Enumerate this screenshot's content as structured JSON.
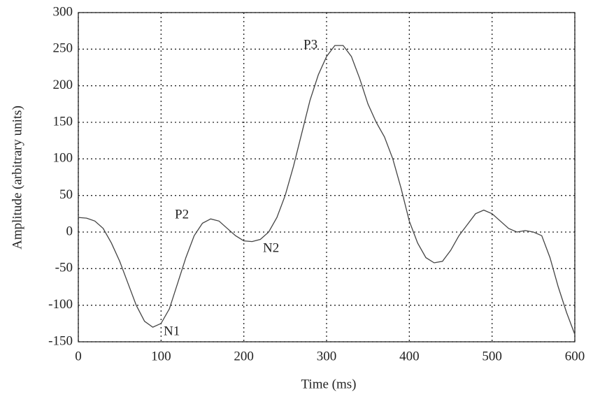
{
  "chart_data": {
    "type": "line",
    "x_label": "Time (ms)",
    "y_label": "Amplitude (arbitrary units)",
    "x": [
      0,
      10,
      20,
      30,
      40,
      50,
      60,
      70,
      80,
      90,
      100,
      110,
      120,
      130,
      140,
      150,
      160,
      170,
      180,
      190,
      200,
      210,
      220,
      230,
      240,
      250,
      260,
      270,
      280,
      290,
      300,
      310,
      320,
      330,
      340,
      350,
      360,
      370,
      380,
      390,
      400,
      410,
      420,
      430,
      440,
      450,
      460,
      470,
      480,
      490,
      500,
      510,
      520,
      530,
      540,
      550,
      560,
      570,
      580,
      590,
      600
    ],
    "series": [
      {
        "color": "#444444",
        "values": [
          20,
          19,
          15,
          5,
          -15,
          -40,
          -70,
          -100,
          -122,
          -130,
          -125,
          -105,
          -70,
          -35,
          -5,
          12,
          18,
          15,
          5,
          -5,
          -12,
          -13,
          -10,
          0,
          20,
          50,
          90,
          135,
          180,
          215,
          240,
          255,
          255,
          240,
          210,
          175,
          150,
          130,
          100,
          60,
          15,
          -15,
          -35,
          -42,
          -40,
          -25,
          -5,
          10,
          25,
          30,
          25,
          15,
          5,
          0,
          2,
          0,
          -5,
          -35,
          -75,
          -110,
          -140
        ]
      }
    ],
    "annotations": [
      "P2",
      "N1",
      "N2",
      "P3"
    ],
    "xlim": [
      0,
      600
    ],
    "xticks": [
      0,
      100,
      200,
      300,
      400,
      500,
      600
    ],
    "ylim": [
      -150,
      300
    ],
    "yticks": [
      -150,
      -100,
      -50,
      0,
      50,
      100,
      150,
      200,
      250,
      300
    ],
    "grid": true
  }
}
